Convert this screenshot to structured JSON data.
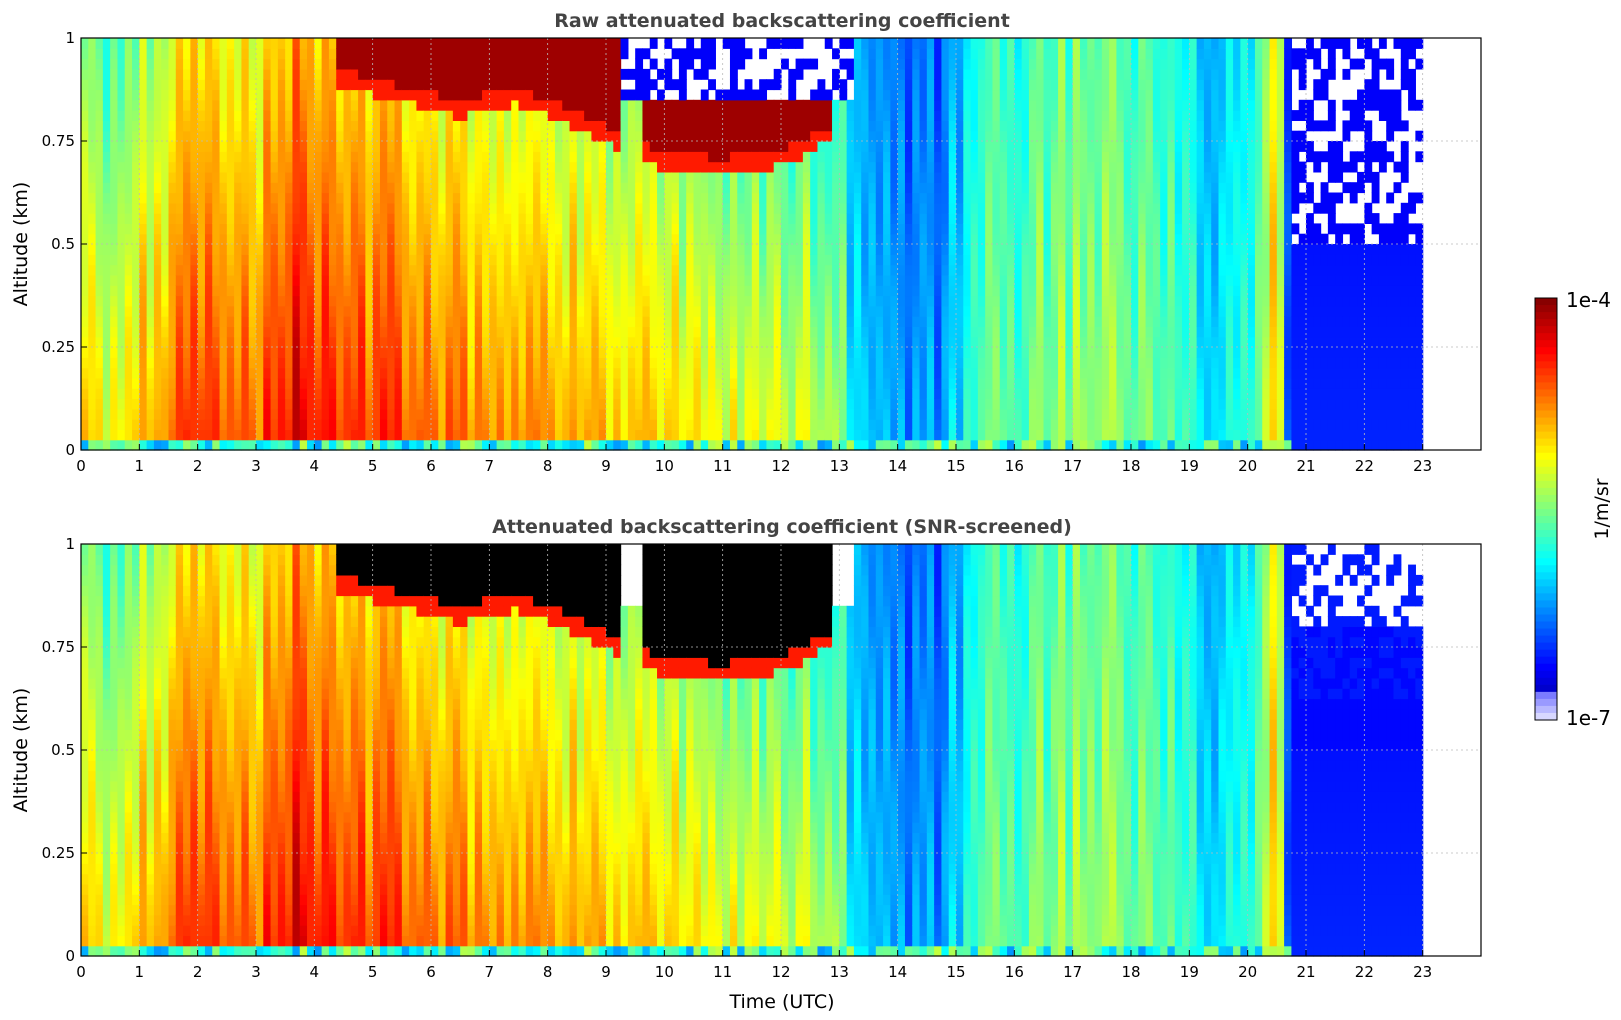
{
  "chart_data": [
    {
      "type": "heatmap",
      "title": "Raw attenuated backscattering coefficient",
      "xlabel": "",
      "ylabel": "Altitude (km)",
      "xlim": [
        0,
        24
      ],
      "ylim": [
        0,
        1
      ],
      "x_ticks": [
        "0",
        "1",
        "2",
        "3",
        "4",
        "5",
        "6",
        "7",
        "8",
        "9",
        "10",
        "11",
        "12",
        "13",
        "14",
        "15",
        "16",
        "17",
        "18",
        "19",
        "20",
        "21",
        "22",
        "23"
      ],
      "y_ticks": [
        "0",
        "0.25",
        "0.5",
        "0.75",
        "1"
      ],
      "data_x_range": [
        0,
        23
      ],
      "grid": true,
      "colorscale": "jet",
      "color_scale_type": "log",
      "description_of_values": {
        "cloud_top_km_by_hour": [
          [
            4.5,
            0.92
          ],
          [
            6.5,
            0.85
          ],
          [
            7.5,
            0.88
          ],
          [
            8.5,
            0.82
          ],
          [
            10.0,
            0.72
          ],
          [
            11.0,
            0.71
          ],
          [
            12.0,
            0.73
          ],
          [
            12.7,
            0.78
          ]
        ]
      }
    },
    {
      "type": "heatmap",
      "title": "Attenuated backscattering coefficient (SNR-screened)",
      "xlabel": "Time (UTC)",
      "ylabel": "Altitude (km)",
      "xlim": [
        0,
        24
      ],
      "ylim": [
        0,
        1
      ],
      "x_ticks": [
        "0",
        "1",
        "2",
        "3",
        "4",
        "5",
        "6",
        "7",
        "8",
        "9",
        "10",
        "11",
        "12",
        "13",
        "14",
        "15",
        "16",
        "17",
        "18",
        "19",
        "20",
        "21",
        "22",
        "23"
      ],
      "y_ticks": [
        "0",
        "0.25",
        "0.5",
        "0.75",
        "1"
      ],
      "data_x_range": [
        0,
        23
      ],
      "grid": true,
      "colorscale": "jet",
      "color_scale_type": "log",
      "saturated_color": "#000000"
    }
  ],
  "colorbar": {
    "label": "1/m/sr",
    "max_label": "1e-4",
    "min_label": "1e-7",
    "vmin": 1e-07,
    "vmax": 0.0001,
    "scale": "log"
  }
}
